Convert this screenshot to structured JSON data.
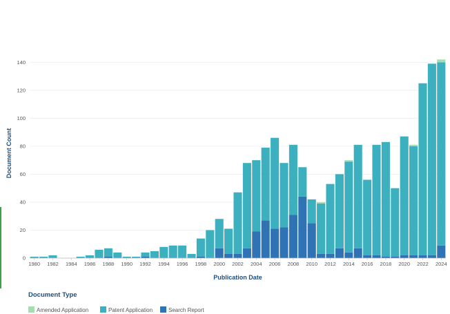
{
  "chart_data": {
    "type": "bar",
    "stacked": true,
    "xlabel": "Publication Date",
    "ylabel": "Document Count",
    "ylim": [
      0,
      150
    ],
    "yticks": [
      0,
      20,
      40,
      60,
      80,
      100,
      120,
      140
    ],
    "grid": true,
    "legend_title": "Document Type",
    "legend_position": "bottom-left",
    "x": [
      1980,
      1981,
      1982,
      1983,
      1984,
      1985,
      1986,
      1987,
      1988,
      1989,
      1990,
      1991,
      1992,
      1993,
      1994,
      1995,
      1996,
      1997,
      1998,
      1999,
      2000,
      2001,
      2002,
      2003,
      2004,
      2005,
      2006,
      2007,
      2008,
      2009,
      2010,
      2011,
      2012,
      2013,
      2014,
      2015,
      2016,
      2017,
      2018,
      2019,
      2020,
      2021,
      2022,
      2023,
      2024
    ],
    "xtick_labels": [
      "1980",
      "1982",
      "1984",
      "1986",
      "1988",
      "1990",
      "1992",
      "1994",
      "1996",
      "1998",
      "2000",
      "2002",
      "2004",
      "2006",
      "2008",
      "2010",
      "2012",
      "2014",
      "2016",
      "2018",
      "2020",
      "2022",
      "2024"
    ],
    "series": [
      {
        "name": "Search Report",
        "color": "#2f73b5",
        "values": [
          0,
          0,
          0,
          0,
          0,
          0,
          0,
          0,
          1,
          0,
          0,
          0,
          1,
          0,
          0,
          0,
          0,
          0,
          1,
          0,
          7,
          3,
          3,
          7,
          19,
          27,
          21,
          22,
          31,
          44,
          25,
          3,
          3,
          7,
          4,
          7,
          2,
          2,
          1,
          1,
          2,
          2,
          2,
          2,
          9
        ]
      },
      {
        "name": "Patent Application",
        "color": "#3cb0bf",
        "values": [
          1,
          1,
          2,
          0,
          0,
          1,
          2,
          6,
          6,
          4,
          1,
          1,
          3,
          5,
          8,
          9,
          9,
          3,
          13,
          20,
          21,
          18,
          44,
          61,
          51,
          52,
          65,
          46,
          50,
          21,
          17,
          36,
          50,
          53,
          65,
          74,
          54,
          79,
          82,
          49,
          85,
          78,
          123,
          137,
          131
        ]
      },
      {
        "name": "Amended Application",
        "color": "#a3ddb0",
        "values": [
          0,
          0,
          0,
          0,
          0,
          0,
          0,
          0,
          0,
          0,
          0,
          0,
          0,
          0,
          0,
          0,
          0,
          0,
          0,
          0,
          0,
          0,
          0,
          0,
          0,
          0,
          0,
          0,
          0,
          0,
          0,
          1,
          0,
          0,
          1,
          0,
          0,
          0,
          0,
          0,
          0,
          1,
          0,
          0,
          2
        ]
      }
    ],
    "legend_order": [
      "Amended Application",
      "Patent Application",
      "Search Report"
    ]
  }
}
